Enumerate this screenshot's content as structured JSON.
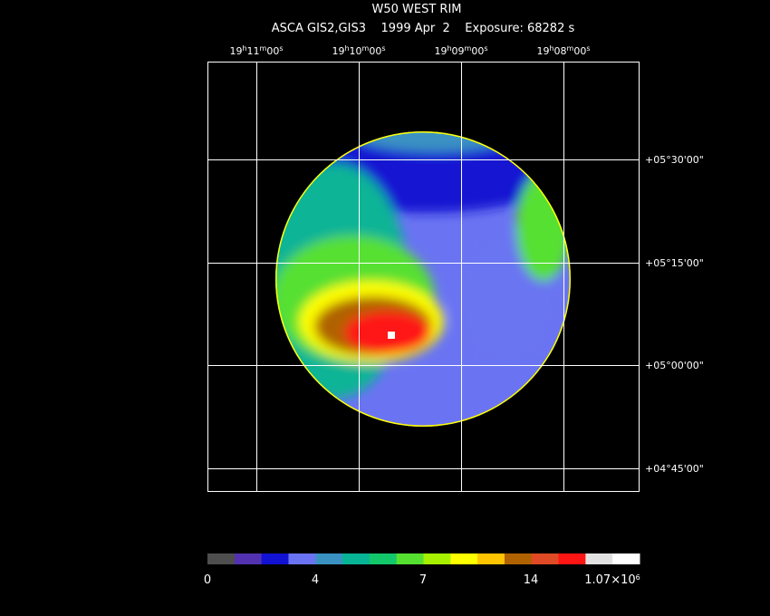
{
  "header": {
    "title": "W50 WEST RIM",
    "subtitle": "ASCA GIS2,GIS3    1999 Apr  2    Exposure: 68282 s"
  },
  "ra_ticks": [
    [
      "19",
      "h",
      "11",
      "m",
      "00",
      "s"
    ],
    [
      "19",
      "h",
      "10",
      "m",
      "00",
      "s"
    ],
    [
      "19",
      "h",
      "09",
      "m",
      "00",
      "s"
    ],
    [
      "19",
      "h",
      "08",
      "m",
      "00",
      "s"
    ]
  ],
  "dec_ticks": [
    "+05°30'00\"",
    "+05°15'00\"",
    "+05°00'00\"",
    "+04°45'00\""
  ],
  "colorbar": {
    "colors": [
      "#4e4e4e",
      "#5232b0",
      "#1212d2",
      "#6a74f2",
      "#3a92c2",
      "#08b496",
      "#12c86a",
      "#56e030",
      "#a6f000",
      "#ffff00",
      "#ffc400",
      "#b06200",
      "#e04a24",
      "#ff1414",
      "#e2e2e2",
      "#ffffff"
    ],
    "labels": [
      [
        "0"
      ],
      [
        "4"
      ],
      [
        "7"
      ],
      [
        "14"
      ],
      [
        "1.07×10",
        "6"
      ]
    ]
  }
}
